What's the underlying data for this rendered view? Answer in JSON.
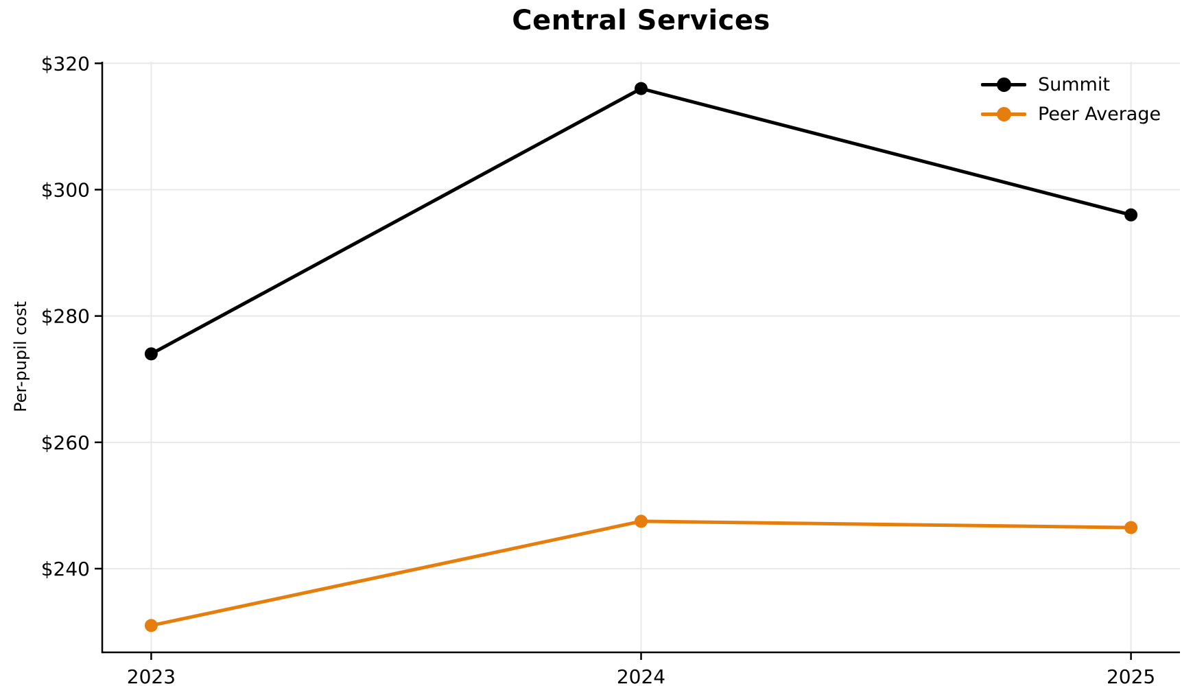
{
  "chart_data": {
    "type": "line",
    "title": "Central Services",
    "ylabel": "Per-pupil cost",
    "xlabel": "",
    "categories": [
      2023,
      2024,
      2025
    ],
    "x_tick_labels": [
      "2023",
      "2024",
      "2025"
    ],
    "y_ticks": [
      240,
      260,
      280,
      300,
      320
    ],
    "y_tick_labels": [
      "$240",
      "$260",
      "$280",
      "$300",
      "$320"
    ],
    "xlim": [
      2022.9,
      2025.1
    ],
    "ylim": [
      226.75,
      320.25
    ],
    "grid": true,
    "legend_position": "upper-right",
    "series": [
      {
        "name": "Summit",
        "color": "#000000",
        "values": [
          274,
          316,
          296
        ]
      },
      {
        "name": "Peer Average",
        "color": "#e67e0e",
        "values": [
          231,
          247.5,
          246.5
        ]
      }
    ],
    "colors": {
      "grid": "#e8e8e8",
      "axis": "#000000",
      "text": "#000000",
      "background": "#ffffff"
    }
  }
}
